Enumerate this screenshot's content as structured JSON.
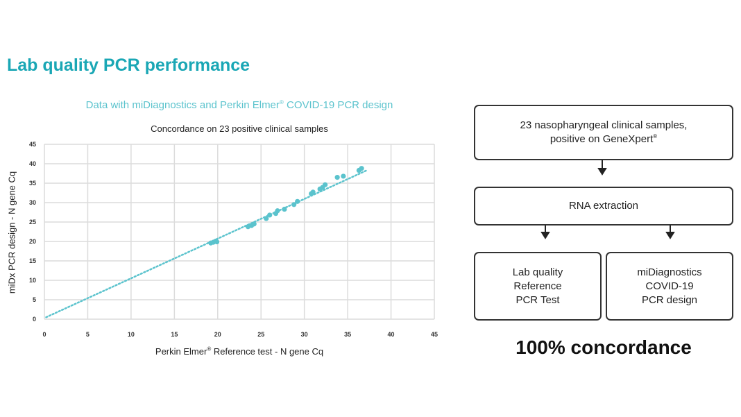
{
  "slide": {
    "title": "Lab quality PCR performance",
    "subtitle_main": "Data with miDiagnostics and Perkin Elmer",
    "subtitle_reg": "®",
    "subtitle_end": " COVID-19 PCR design",
    "concordance": "100% concordance"
  },
  "flow": {
    "top_line1": "23 nasopharyngeal clinical samples,",
    "top_line2": "positive on GeneXpert",
    "top_reg": "®",
    "middle": "RNA extraction",
    "left_lines": [
      "Lab quality",
      "Reference",
      "PCR Test"
    ],
    "right_lines": [
      "miDiagnostics",
      "COVID-19",
      "PCR design"
    ]
  },
  "chart_data": {
    "type": "scatter",
    "title": "Concordance on 23 positive clinical samples",
    "xlabel_main": "Perkin Elmer",
    "xlabel_reg": "®",
    "xlabel_end": " Reference test - N gene Cq",
    "ylabel": "miDx PCR design - N gene Cq",
    "xlim": [
      0,
      45
    ],
    "ylim": [
      0,
      45
    ],
    "xticks": [
      0,
      5,
      10,
      15,
      20,
      25,
      30,
      35,
      40,
      45
    ],
    "yticks": [
      0,
      5,
      10,
      15,
      20,
      25,
      30,
      35,
      40,
      45
    ],
    "grid": true,
    "marker_color": "#5bc3cd",
    "points": [
      [
        19.2,
        19.6
      ],
      [
        19.5,
        19.8
      ],
      [
        19.8,
        20.1
      ],
      [
        19.9,
        19.9
      ],
      [
        23.5,
        23.8
      ],
      [
        23.9,
        24.1
      ],
      [
        24.2,
        24.5
      ],
      [
        25.6,
        25.9
      ],
      [
        26.0,
        26.8
      ],
      [
        26.7,
        27.2
      ],
      [
        26.9,
        27.9
      ],
      [
        27.7,
        28.3
      ],
      [
        28.8,
        29.5
      ],
      [
        29.2,
        30.3
      ],
      [
        30.8,
        32.3
      ],
      [
        31.0,
        32.7
      ],
      [
        31.8,
        33.5
      ],
      [
        32.1,
        33.9
      ],
      [
        32.4,
        34.6
      ],
      [
        33.8,
        36.5
      ],
      [
        34.5,
        36.8
      ],
      [
        36.3,
        38.3
      ],
      [
        36.6,
        38.8
      ]
    ],
    "trendline": {
      "x0": 0.2,
      "y0": 0.5,
      "x1": 37.2,
      "y1": 38.3,
      "style": "dotted"
    }
  }
}
